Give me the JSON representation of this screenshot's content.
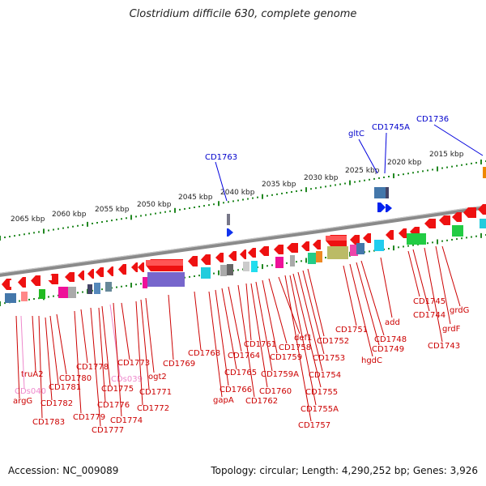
{
  "header": {
    "title": "Clostridium difficile 630, complete genome"
  },
  "footer": {
    "accession": "Accession: NC_009089",
    "summary": "Topology: circular; Length: 4,290,252 bp; Genes: 3,926"
  },
  "colors": {
    "gene_label": "#cc0000",
    "top_label": "#0000cc",
    "pseudo_label": "#ee88cc",
    "tick": "#228822",
    "backbone": "#888888",
    "scale_text": "#222222"
  },
  "scale_labels": [
    {
      "text": "2065 kbp"
    },
    {
      "text": "2060 kbp"
    },
    {
      "text": "2055 kbp"
    },
    {
      "text": "2050 kbp"
    },
    {
      "text": "2045 kbp"
    },
    {
      "text": "2040 kbp"
    },
    {
      "text": "2035 kbp"
    },
    {
      "text": "2030 kbp"
    },
    {
      "text": "2025 kbp"
    },
    {
      "text": "2020 kbp"
    },
    {
      "text": "2015 kbp"
    }
  ],
  "top_labels": [
    {
      "text": "CD1763"
    },
    {
      "text": "gltC"
    },
    {
      "text": "CD1745A"
    },
    {
      "text": "CD1736"
    }
  ],
  "gene_labels": [
    {
      "text": "truA2",
      "kind": "gene"
    },
    {
      "text": "CDs040",
      "kind": "pseudo"
    },
    {
      "text": "argG",
      "kind": "gene"
    },
    {
      "text": "CD1783",
      "kind": "gene"
    },
    {
      "text": "CD1782",
      "kind": "gene"
    },
    {
      "text": "CD1781",
      "kind": "gene"
    },
    {
      "text": "CD1780",
      "kind": "gene"
    },
    {
      "text": "CD1779",
      "kind": "gene"
    },
    {
      "text": "CD1778",
      "kind": "gene"
    },
    {
      "text": "CD1777",
      "kind": "gene"
    },
    {
      "text": "CD1776",
      "kind": "gene"
    },
    {
      "text": "CD1775",
      "kind": "gene"
    },
    {
      "text": "CDs039",
      "kind": "pseudo"
    },
    {
      "text": "CD1774",
      "kind": "gene"
    },
    {
      "text": "CD1773",
      "kind": "gene"
    },
    {
      "text": "CD1772",
      "kind": "gene"
    },
    {
      "text": "CD1771",
      "kind": "gene"
    },
    {
      "text": "ogt2",
      "kind": "gene"
    },
    {
      "text": "CD1769",
      "kind": "gene"
    },
    {
      "text": "CD1768",
      "kind": "gene"
    },
    {
      "text": "gapA",
      "kind": "gene"
    },
    {
      "text": "CD1766",
      "kind": "gene"
    },
    {
      "text": "CD1765",
      "kind": "gene"
    },
    {
      "text": "CD1764",
      "kind": "gene"
    },
    {
      "text": "CD1762",
      "kind": "gene"
    },
    {
      "text": "CD1761",
      "kind": "gene"
    },
    {
      "text": "CD1760",
      "kind": "gene"
    },
    {
      "text": "CD1759A",
      "kind": "gene"
    },
    {
      "text": "CD1759",
      "kind": "gene"
    },
    {
      "text": "CD1758",
      "kind": "gene"
    },
    {
      "text": "def1",
      "kind": "gene"
    },
    {
      "text": "CD1757",
      "kind": "gene"
    },
    {
      "text": "CD1755A",
      "kind": "gene"
    },
    {
      "text": "CD1755",
      "kind": "gene"
    },
    {
      "text": "CD1754",
      "kind": "gene"
    },
    {
      "text": "CD1753",
      "kind": "gene"
    },
    {
      "text": "CD1752",
      "kind": "gene"
    },
    {
      "text": "CD1751",
      "kind": "gene"
    },
    {
      "text": "hgdC",
      "kind": "gene"
    },
    {
      "text": "CD1749",
      "kind": "gene"
    },
    {
      "text": "CD1748",
      "kind": "gene"
    },
    {
      "text": "add",
      "kind": "gene"
    },
    {
      "text": "CD1745",
      "kind": "gene"
    },
    {
      "text": "CD1744",
      "kind": "gene"
    },
    {
      "text": "CD1743",
      "kind": "gene"
    },
    {
      "text": "grdF",
      "kind": "gene"
    },
    {
      "text": "grdG",
      "kind": "gene"
    }
  ]
}
